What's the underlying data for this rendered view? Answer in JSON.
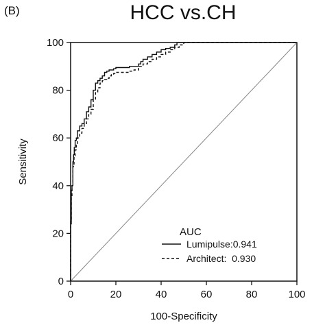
{
  "panel_label": "(B)",
  "chart_data": {
    "type": "line",
    "title": "HCC vs.CH",
    "xlabel": "100-Specificity",
    "ylabel": "Sensitivity",
    "xlim": [
      0,
      100
    ],
    "ylim": [
      0,
      100
    ],
    "xticks": [
      0,
      20,
      40,
      60,
      80,
      100
    ],
    "yticks": [
      0,
      20,
      40,
      60,
      80,
      100
    ],
    "grid": false,
    "legend_title": "AUC",
    "legend_position": "bottom-right",
    "reference_line": {
      "x": [
        0,
        100
      ],
      "y": [
        0,
        100
      ],
      "color": "#888888"
    },
    "series": [
      {
        "name": "Lumipulse:0.941",
        "style": "solid",
        "color": "#111111",
        "x": [
          0,
          0.3,
          0.6,
          1,
          1.3,
          1.6,
          2,
          2.5,
          3,
          4,
          5,
          6,
          7,
          8,
          9,
          10,
          11,
          12,
          13,
          14,
          15,
          16,
          17,
          18,
          19,
          20,
          22,
          24,
          26,
          28,
          30,
          31,
          32,
          34,
          36,
          38,
          40,
          42,
          44,
          46,
          47,
          48,
          50
        ],
        "y": [
          0,
          24,
          38,
          40,
          50,
          53,
          56,
          59,
          60,
          63,
          65,
          66,
          68,
          71,
          73,
          76,
          80,
          83,
          84,
          85,
          86,
          87.5,
          88,
          88.5,
          88.5,
          89,
          89.5,
          89.5,
          89.5,
          90,
          90,
          91,
          92,
          93,
          94,
          95,
          96,
          97,
          97.5,
          98,
          99,
          100,
          100
        ]
      },
      {
        "name": "Architect:  0.930",
        "style": "dashed",
        "color": "#111111",
        "x": [
          0,
          0.3,
          0.6,
          1,
          1.5,
          2,
          2.5,
          3,
          4,
          5,
          6,
          7,
          8,
          9,
          10,
          11,
          12,
          13,
          14,
          15,
          16,
          17,
          18,
          19,
          20,
          22,
          24,
          26,
          28,
          30,
          32,
          34,
          36,
          38,
          40,
          42,
          44,
          46,
          48,
          50,
          52
        ],
        "y": [
          0,
          26,
          35,
          40,
          48,
          52,
          55,
          57,
          60,
          62,
          64,
          66,
          68,
          70,
          72,
          76,
          79,
          81,
          83,
          84,
          84.5,
          85,
          86,
          86.5,
          87,
          87.5,
          87.5,
          87.5,
          88,
          88.5,
          90,
          91,
          92,
          93,
          94,
          95,
          96,
          97,
          98,
          99,
          100
        ]
      }
    ]
  }
}
